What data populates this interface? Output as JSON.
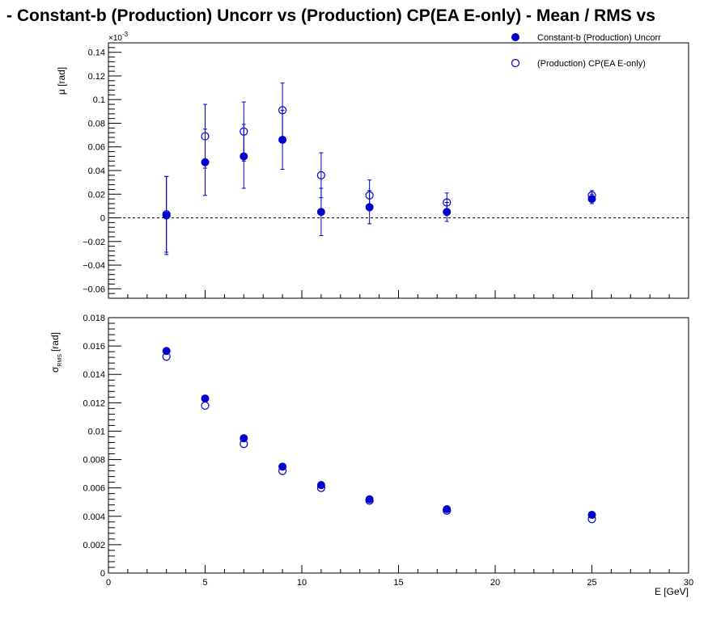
{
  "title": " -  Constant-b (Production) Uncorr vs (Production) CP(EA E-only)  -  Mean / RMS vs",
  "colors": {
    "series": "#0000cc",
    "axis": "#000000",
    "background": "#ffffff"
  },
  "legend": {
    "position": "top-right",
    "entries": [
      {
        "label": "Constant-b (Production) Uncorr",
        "marker": "filled-circle"
      },
      {
        "label": "(Production) CP(EA E-only)",
        "marker": "open-circle"
      }
    ]
  },
  "chart_data": [
    {
      "type": "scatter",
      "panel": "mean",
      "ylabel": "μ  [rad]",
      "exponent_label": "×10",
      "exponent_sup": "-3",
      "xlim": [
        0,
        30
      ],
      "ylim": [
        -0.068,
        0.148
      ],
      "yticks": [
        -0.06,
        -0.04,
        -0.02,
        0,
        0.02,
        0.04,
        0.06,
        0.08,
        0.1,
        0.12,
        0.14
      ],
      "ytick_labels": [
        "−0.06",
        "−0.04",
        "−0.02",
        "0",
        "0.02",
        "0.04",
        "0.06",
        "0.08",
        "0.1",
        "0.12",
        "0.14"
      ],
      "reference_line": 0,
      "series": [
        {
          "name": "Constant-b (Production) Uncorr",
          "marker": "filled",
          "x": [
            3,
            5,
            7,
            9,
            11,
            13.5,
            17.5,
            25
          ],
          "y": [
            0.002,
            0.047,
            0.052,
            0.066,
            0.005,
            0.009,
            0.005,
            0.016
          ],
          "yerr": [
            0.033,
            0.028,
            0.027,
            0.025,
            0.02,
            0.014,
            0.008,
            0.004
          ]
        },
        {
          "name": "(Production) CP(EA E-only)",
          "marker": "open",
          "x": [
            3,
            5,
            7,
            9,
            11,
            13.5,
            17.5,
            25
          ],
          "y": [
            0.003,
            0.069,
            0.073,
            0.091,
            0.036,
            0.019,
            0.013,
            0.019
          ],
          "yerr": [
            0.032,
            0.027,
            0.025,
            0.023,
            0.019,
            0.013,
            0.008,
            0.004
          ]
        }
      ]
    },
    {
      "type": "scatter",
      "panel": "rms",
      "ylabel": "σ",
      "ylabel_sub": "RMS",
      "ylabel_unit": "[rad]",
      "xlabel": "E  [GeV]",
      "xlim": [
        0,
        30
      ],
      "ylim": [
        0,
        0.018
      ],
      "xticks": [
        0,
        5,
        10,
        15,
        20,
        25,
        30
      ],
      "xtick_labels": [
        "0",
        "5",
        "10",
        "15",
        "20",
        "25",
        "30"
      ],
      "yticks": [
        0,
        0.002,
        0.004,
        0.006,
        0.008,
        0.01,
        0.012,
        0.014,
        0.016,
        0.018
      ],
      "ytick_labels": [
        "0",
        "0.002",
        "0.004",
        "0.006",
        "0.008",
        "0.01",
        "0.012",
        "0.014",
        "0.016",
        "0.018"
      ],
      "series": [
        {
          "name": "Constant-b (Production) Uncorr",
          "marker": "filled",
          "x": [
            3,
            5,
            7,
            9,
            11,
            13.5,
            17.5,
            25
          ],
          "y": [
            0.01565,
            0.0123,
            0.0095,
            0.0075,
            0.0062,
            0.0052,
            0.0045,
            0.0041
          ]
        },
        {
          "name": "(Production) CP(EA E-only)",
          "marker": "open",
          "x": [
            3,
            5,
            7,
            9,
            11,
            13.5,
            17.5,
            25
          ],
          "y": [
            0.01525,
            0.0118,
            0.0091,
            0.0072,
            0.006,
            0.0051,
            0.0044,
            0.0038
          ]
        }
      ]
    }
  ]
}
